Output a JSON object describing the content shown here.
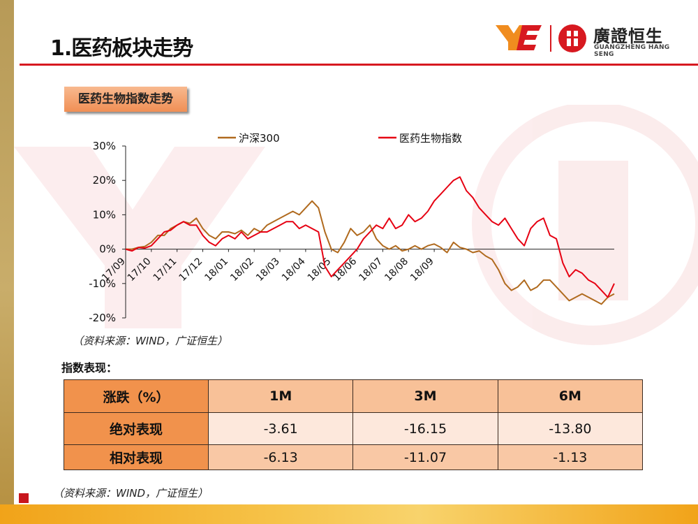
{
  "page": {
    "title": "1.医药板块走势"
  },
  "logo": {
    "name_cn": "廣證恒生",
    "name_en": "GUANGZHENG HANG SENG"
  },
  "section": {
    "tag": "医药生物指数走势"
  },
  "colors": {
    "accent_red": "#d71920",
    "hs300": "#b06a1e",
    "pharma": "#e60012",
    "orange_tag": "#f08f55"
  },
  "chart_data": {
    "type": "line",
    "title": "",
    "xlabel": "",
    "ylabel": "",
    "ylim": [
      -20,
      30
    ],
    "yticks": [
      "30%",
      "20%",
      "10%",
      "0%",
      "-10%",
      "-20%"
    ],
    "ytick_values": [
      30,
      20,
      10,
      0,
      -10,
      -20
    ],
    "xtick_labels": [
      "17/09",
      "17/10",
      "17/11",
      "17/12",
      "18/01",
      "18/02",
      "18/03",
      "18/04",
      "18/05",
      "18/06",
      "18/07",
      "18/08",
      "18/09"
    ],
    "xtick_index": [
      0,
      4,
      8,
      12,
      16,
      20,
      24,
      28,
      32,
      36,
      40,
      44,
      48
    ],
    "legend_position": "top",
    "series": [
      {
        "name": "沪深300",
        "color": "#b06a1e",
        "values": [
          0,
          0,
          0.5,
          0.8,
          2,
          4,
          4,
          6,
          7,
          8,
          7.5,
          9,
          6,
          4,
          3,
          5,
          5,
          4.5,
          5.5,
          4,
          6,
          5,
          7,
          8,
          9,
          10,
          11,
          10,
          12,
          14,
          12,
          5,
          0,
          -1,
          2,
          6,
          4,
          5,
          7,
          3,
          1,
          0,
          1,
          -0.5,
          0,
          1,
          0,
          1,
          1.5,
          0.5,
          -1,
          2,
          0.5,
          0,
          -1,
          -0.5,
          -2,
          -3,
          -6,
          -10,
          -12,
          -11,
          -9,
          -12,
          -11,
          -9,
          -9,
          -11,
          -13,
          -15,
          -14,
          -13,
          -14,
          -15,
          -16,
          -14,
          -13
        ]
      },
      {
        "name": "医药生物指数",
        "color": "#e60012",
        "values": [
          0,
          -0.5,
          0.5,
          0.3,
          1,
          3,
          5,
          5.5,
          7,
          8,
          7,
          7,
          4,
          2,
          1,
          3,
          4,
          3,
          5,
          3,
          4,
          5,
          5,
          6,
          7,
          8,
          8,
          6,
          7,
          6,
          5,
          -5,
          -8,
          -6,
          -4,
          -2,
          0,
          3,
          5,
          7,
          6,
          9,
          6,
          7,
          10,
          8,
          9,
          11,
          14,
          16,
          18,
          20,
          21,
          17,
          15,
          12,
          10,
          8,
          7,
          9,
          6,
          3,
          1,
          6,
          8,
          9,
          4,
          3,
          -4,
          -8,
          -6,
          -7,
          -9,
          -10,
          -12,
          -14,
          -10
        ]
      }
    ],
    "x_count": 77
  },
  "chart_source": "（资料来源：WIND，广证恒生）",
  "table": {
    "heading": "指数表现：",
    "headers": [
      "涨跌（%）",
      "1M",
      "3M",
      "6M"
    ],
    "rows": [
      [
        "绝对表现",
        "-3.61",
        "-16.15",
        "-13.80"
      ],
      [
        "相对表现",
        "-6.13",
        "-11.07",
        "-1.13"
      ]
    ]
  },
  "table_source": "（资料来源：WIND，广证恒生）"
}
